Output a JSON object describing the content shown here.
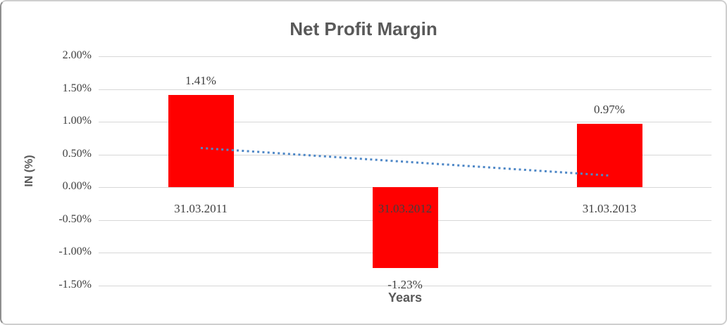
{
  "chart_data": {
    "type": "bar",
    "title": "Net Profit Margin",
    "xlabel": "Years",
    "ylabel": "IN (%)",
    "categories": [
      "31.03.2011",
      "31.03.2012",
      "31.03.2013"
    ],
    "values": [
      1.41,
      -1.23,
      0.97
    ],
    "data_labels": [
      "1.41%",
      "-1.23%",
      "0.97%"
    ],
    "ylim": [
      -1.5,
      2.0
    ],
    "yticks": [
      {
        "value": 2.0,
        "label": "2.00%"
      },
      {
        "value": 1.5,
        "label": "1.50%"
      },
      {
        "value": 1.0,
        "label": "1.00%"
      },
      {
        "value": 0.5,
        "label": "0.50%"
      },
      {
        "value": 0.0,
        "label": "0.00%"
      },
      {
        "value": -0.5,
        "label": "-0.50%"
      },
      {
        "value": -1.0,
        "label": "-1.00%"
      },
      {
        "value": -1.5,
        "label": "-1.50%"
      }
    ],
    "grid": true,
    "legend": false,
    "trendline": {
      "style": "dotted",
      "points": [
        {
          "x": 0,
          "y": 0.6
        },
        {
          "x": 2,
          "y": 0.18
        }
      ]
    },
    "colors": {
      "bar": "#FF0000",
      "trendline": "#4F88C7",
      "gridline": "#D7D7D7",
      "title_text": "#595959",
      "label_text": "#3F3F3F"
    }
  }
}
